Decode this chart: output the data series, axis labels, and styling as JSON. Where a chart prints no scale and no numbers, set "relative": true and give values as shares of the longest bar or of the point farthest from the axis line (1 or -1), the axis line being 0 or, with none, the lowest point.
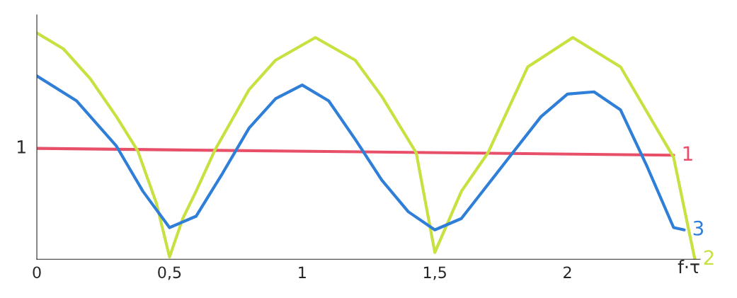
{
  "chart_data": {
    "type": "line",
    "relative": true,
    "xlabel": "f·τ",
    "xlim": [
      0,
      2.5
    ],
    "xticks": [
      0,
      {
        "value": 0.5,
        "label": "0,5"
      },
      1,
      {
        "value": 1.5,
        "label": "1,5"
      },
      2
    ],
    "grid": false,
    "legend": false,
    "annotations": [
      {
        "text": "1",
        "x": 0,
        "y": 0.49
      }
    ],
    "series": [
      {
        "name": "1",
        "color": "#e8506a",
        "x": [
          0,
          2.4
        ],
        "values": [
          0.49,
          0.46
        ]
      },
      {
        "name": "2",
        "color": "#c8e040",
        "x": [
          0,
          0.1,
          0.2,
          0.3,
          0.38,
          0.45,
          0.5,
          0.55,
          0.6,
          0.67,
          0.8,
          0.9,
          1.05,
          1.2,
          1.3,
          1.43,
          1.5,
          1.6,
          1.7,
          1.85,
          2.02,
          2.2,
          2.3,
          2.4,
          2.48
        ],
        "values": [
          1.0,
          0.93,
          0.8,
          0.63,
          0.48,
          0.25,
          0.01,
          0.18,
          0.3,
          0.48,
          0.75,
          0.88,
          0.98,
          0.88,
          0.72,
          0.47,
          0.03,
          0.3,
          0.47,
          0.85,
          0.98,
          0.85,
          0.65,
          0.45,
          0.0
        ]
      },
      {
        "name": "3",
        "color": "#2f7fd8",
        "x": [
          0,
          0.15,
          0.3,
          0.4,
          0.5,
          0.6,
          0.7,
          0.8,
          0.9,
          1.0,
          1.1,
          1.2,
          1.3,
          1.4,
          1.5,
          1.6,
          1.7,
          1.8,
          1.9,
          2.0,
          2.1,
          2.2,
          2.3,
          2.4,
          2.44
        ],
        "values": [
          0.81,
          0.7,
          0.5,
          0.3,
          0.14,
          0.19,
          0.38,
          0.58,
          0.71,
          0.77,
          0.7,
          0.53,
          0.35,
          0.21,
          0.13,
          0.18,
          0.33,
          0.48,
          0.63,
          0.73,
          0.74,
          0.66,
          0.41,
          0.14,
          0.13
        ]
      }
    ]
  }
}
